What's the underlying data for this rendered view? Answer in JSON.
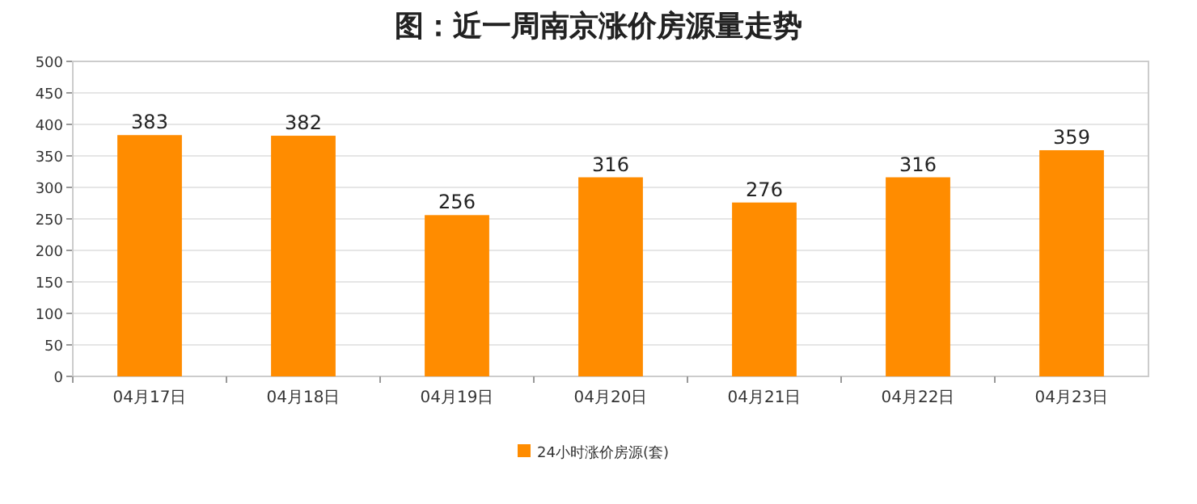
{
  "chart_data": {
    "type": "bar",
    "title": "图：近一周南京涨价房源量走势",
    "categories": [
      "04月17日",
      "04月18日",
      "04月19日",
      "04月20日",
      "04月21日",
      "04月22日",
      "04月23日"
    ],
    "series": [
      {
        "name": "24小时涨价房源(套)",
        "color": "#ff8c00",
        "values": [
          383,
          382,
          256,
          316,
          276,
          316,
          359
        ]
      }
    ],
    "ylim": [
      0,
      500
    ],
    "yticks": [
      0,
      50,
      100,
      150,
      200,
      250,
      300,
      350,
      400,
      450,
      500
    ],
    "grid": "y",
    "legend": "bottom",
    "data_labels": true
  }
}
